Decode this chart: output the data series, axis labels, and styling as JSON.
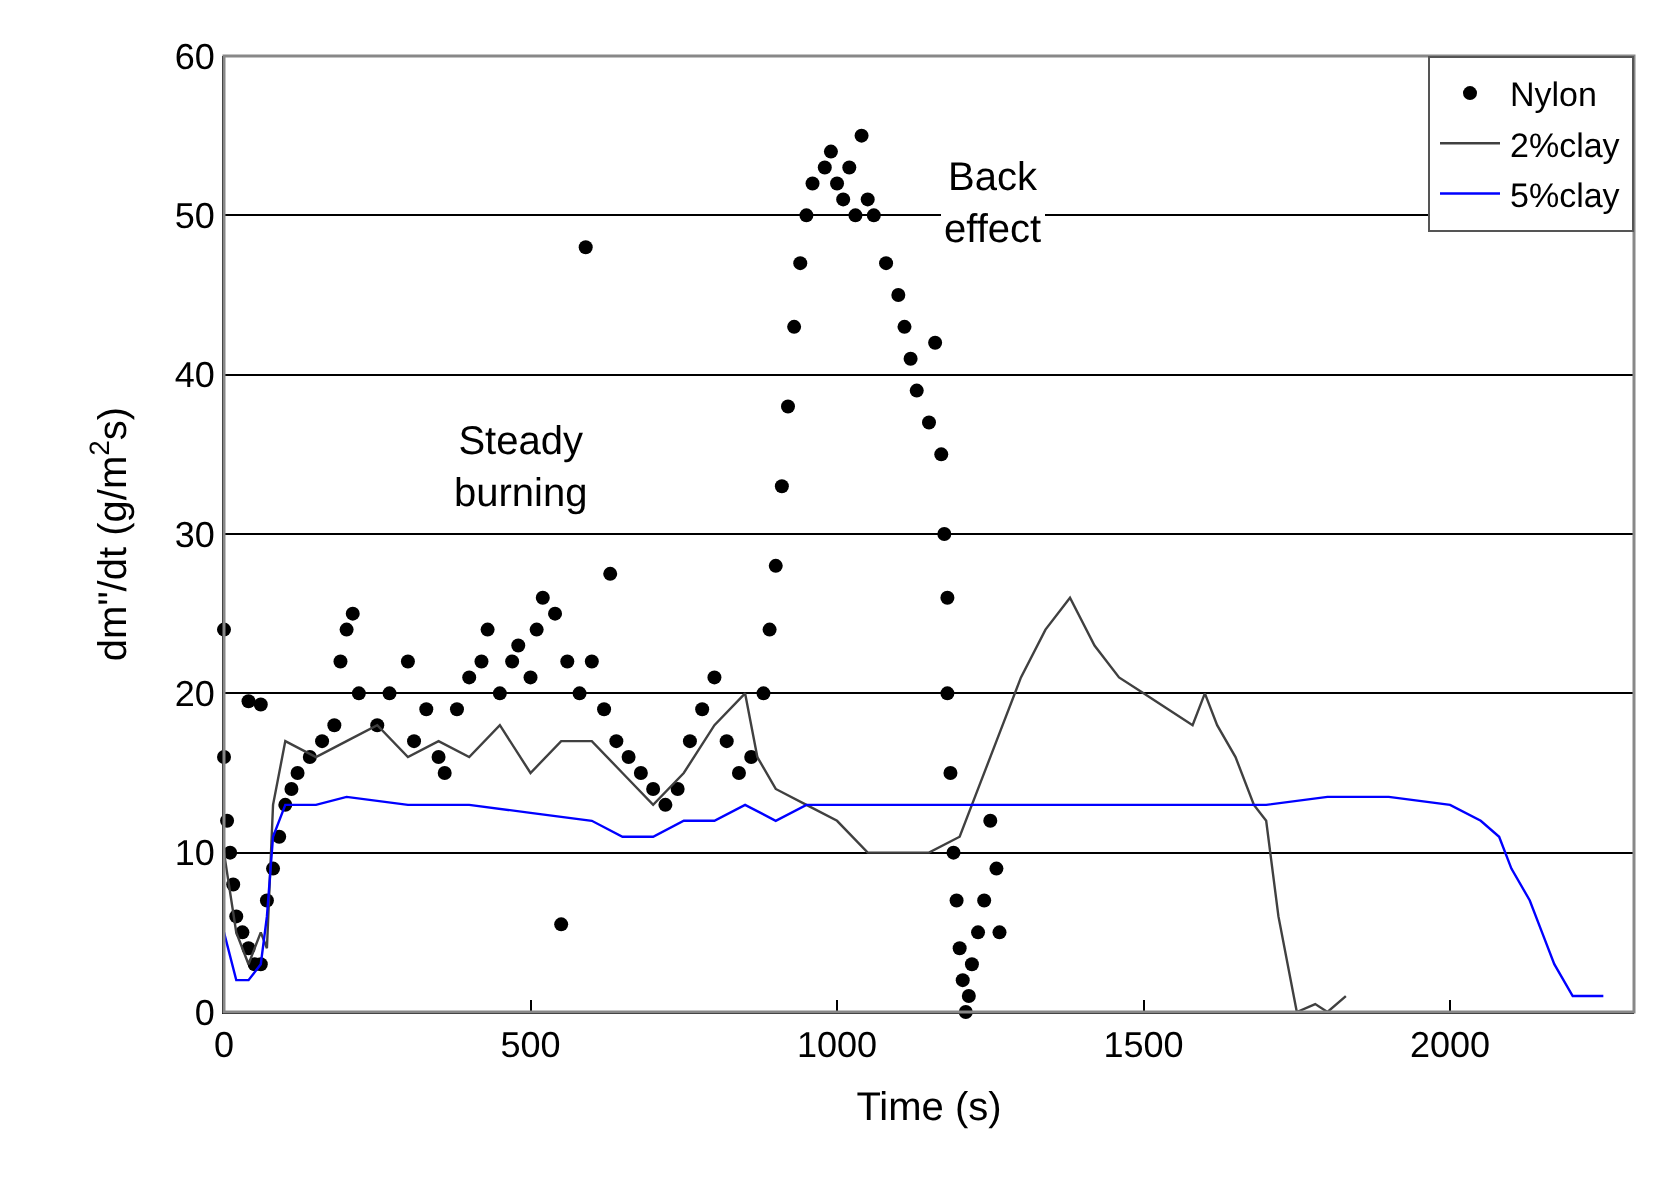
{
  "chart_data": {
    "type": "line",
    "xlabel": "Time (s)",
    "ylabel": "dm\"/dt (g/m$^{2}$s)",
    "xlim": [
      0,
      2300
    ],
    "xticks": [
      0,
      500,
      1000,
      1500,
      2000
    ],
    "ylim": [
      0,
      60
    ],
    "yticks": [
      0,
      10,
      20,
      30,
      40,
      50,
      60
    ],
    "grid": "y",
    "legend": "top right",
    "annotations": [
      "Steady burning",
      "Back effect"
    ],
    "series": [
      {
        "name": "Nylon",
        "type": "scatter",
        "marker": "circle",
        "color": "#000000",
        "x": [
          0,
          0,
          5,
          10,
          15,
          20,
          30,
          40,
          50,
          40,
          60,
          60,
          70,
          80,
          90,
          100,
          110,
          120,
          140,
          160,
          180,
          190,
          200,
          210,
          220,
          250,
          270,
          300,
          310,
          330,
          350,
          360,
          380,
          400,
          420,
          430,
          450,
          470,
          480,
          500,
          510,
          520,
          540,
          550,
          560,
          580,
          590,
          600,
          620,
          630,
          640,
          660,
          680,
          700,
          720,
          740,
          760,
          780,
          800,
          820,
          840,
          860,
          880,
          890,
          900,
          910,
          920,
          930,
          940,
          950,
          960,
          980,
          990,
          1000,
          1010,
          1020,
          1030,
          1040,
          1050,
          1060,
          1080,
          1100,
          1110,
          1120,
          1130,
          1150,
          1160,
          1170,
          1175,
          1180,
          1180,
          1185,
          1190,
          1195,
          1200,
          1205,
          1210,
          1215,
          1220,
          1230,
          1240,
          1250,
          1260,
          1265
        ],
        "values": [
          24,
          16,
          12,
          10,
          8,
          6,
          5,
          4,
          3,
          19.5,
          19.3,
          3,
          7,
          9,
          11,
          13,
          14,
          15,
          16,
          17,
          18,
          22,
          24,
          25,
          20,
          18,
          20,
          22,
          17,
          19,
          16,
          15,
          19,
          21,
          22,
          24,
          20,
          22,
          23,
          21,
          24,
          26,
          25,
          5.5,
          22,
          20,
          48,
          22,
          19,
          27.5,
          17,
          16,
          15,
          14,
          13,
          14,
          17,
          19,
          21,
          17,
          15,
          16,
          20,
          24,
          28,
          33,
          38,
          43,
          47,
          50,
          52,
          53,
          54,
          52,
          51,
          53,
          50,
          55,
          51,
          50,
          47,
          45,
          43,
          41,
          39,
          37,
          42,
          35,
          30,
          26,
          20,
          15,
          10,
          7,
          4,
          2,
          0,
          1,
          3,
          5,
          7,
          12,
          9,
          5
        ]
      },
      {
        "name": "2%clay",
        "marker": "none",
        "color": "#404040",
        "x": [
          0,
          20,
          40,
          60,
          70,
          80,
          100,
          150,
          200,
          250,
          300,
          350,
          400,
          450,
          500,
          550,
          600,
          650,
          700,
          750,
          800,
          850,
          870,
          900,
          950,
          1000,
          1050,
          1100,
          1150,
          1200,
          1230,
          1260,
          1300,
          1340,
          1380,
          1420,
          1460,
          1500,
          1540,
          1580,
          1600,
          1620,
          1650,
          1680,
          1700,
          1720,
          1750,
          1780,
          1800,
          1830
        ],
        "values": [
          10,
          5,
          3,
          5,
          4,
          13,
          17,
          16,
          17,
          18,
          16,
          17,
          16,
          18,
          15,
          17,
          17,
          15,
          13,
          15,
          18,
          20,
          16,
          14,
          13,
          12,
          10,
          10,
          10,
          11,
          14,
          17,
          21,
          24,
          26,
          23,
          21,
          20,
          19,
          18,
          20,
          18,
          16,
          13,
          12,
          6,
          0,
          0.5,
          0,
          1
        ]
      },
      {
        "name": "5%clay",
        "marker": "none",
        "color": "#0000ff",
        "x": [
          0,
          20,
          40,
          60,
          70,
          80,
          100,
          150,
          200,
          300,
          400,
          500,
          600,
          650,
          700,
          750,
          800,
          850,
          900,
          950,
          1000,
          1100,
          1200,
          1300,
          1400,
          1500,
          1600,
          1700,
          1800,
          1900,
          2000,
          2050,
          2080,
          2100,
          2130,
          2150,
          2170,
          2200,
          2250
        ],
        "values": [
          5,
          2,
          2,
          3,
          6,
          11,
          13,
          13,
          13.5,
          13,
          13,
          12.5,
          12,
          11,
          11,
          12,
          12,
          13,
          12,
          13,
          13,
          13,
          13,
          13,
          13,
          13,
          13,
          13,
          13.5,
          13.5,
          13,
          12,
          11,
          9,
          7,
          5,
          3,
          1,
          1
        ]
      }
    ]
  }
}
